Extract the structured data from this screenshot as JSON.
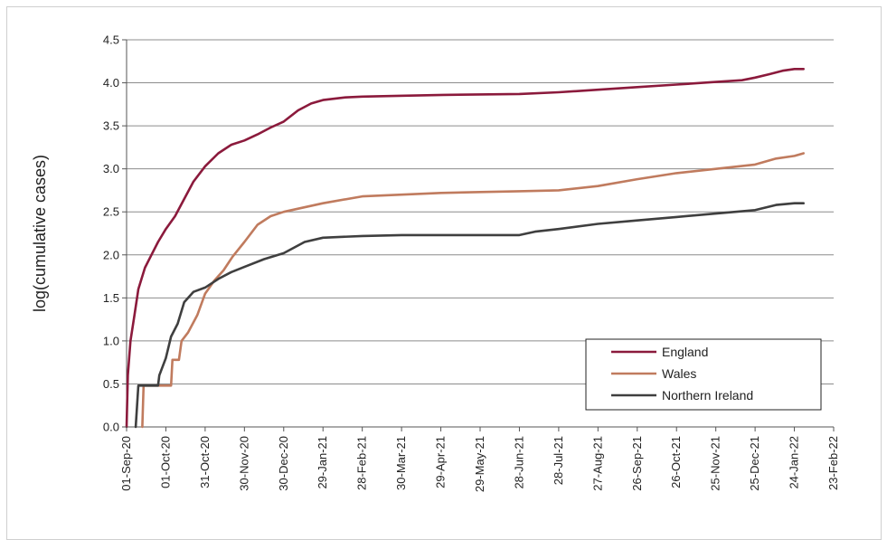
{
  "chart_data": {
    "type": "line",
    "title": "",
    "xlabel": "",
    "ylabel": "log(cumulative cases)",
    "ylim": [
      0,
      4.5
    ],
    "xlim": [
      "2020-09-01",
      "2022-02-23"
    ],
    "yticks": [
      "0.0",
      "0.5",
      "1.0",
      "1.5",
      "2.0",
      "2.5",
      "3.0",
      "3.5",
      "4.0",
      "4.5"
    ],
    "xtick_labels": [
      "01-Sep-20",
      "01-Oct-20",
      "31-Oct-20",
      "30-Nov-20",
      "30-Dec-20",
      "29-Jan-21",
      "28-Feb-21",
      "30-Mar-21",
      "29-Apr-21",
      "29-May-21",
      "28-Jun-21",
      "28-Jul-21",
      "27-Aug-21",
      "26-Sep-21",
      "26-Oct-21",
      "25-Nov-21",
      "25-Dec-21",
      "24-Jan-22",
      "23-Feb-22"
    ],
    "xtick_dates": [
      "2020-09-01",
      "2020-10-01",
      "2020-10-31",
      "2020-11-30",
      "2020-12-30",
      "2021-01-29",
      "2021-02-28",
      "2021-03-30",
      "2021-04-29",
      "2021-05-29",
      "2021-06-28",
      "2021-07-28",
      "2021-08-27",
      "2021-09-26",
      "2021-10-26",
      "2021-11-25",
      "2021-12-25",
      "2022-01-24",
      "2022-02-23"
    ],
    "grid": true,
    "legend_position": "lower-right",
    "series": [
      {
        "name": "England",
        "color": "#8b1a3c",
        "points": [
          [
            "2020-09-01",
            0.0
          ],
          [
            "2020-09-02",
            0.6
          ],
          [
            "2020-09-04",
            1.0
          ],
          [
            "2020-09-07",
            1.3
          ],
          [
            "2020-09-10",
            1.6
          ],
          [
            "2020-09-15",
            1.85
          ],
          [
            "2020-09-20",
            2.0
          ],
          [
            "2020-09-25",
            2.15
          ],
          [
            "2020-10-01",
            2.3
          ],
          [
            "2020-10-08",
            2.45
          ],
          [
            "2020-10-15",
            2.65
          ],
          [
            "2020-10-22",
            2.85
          ],
          [
            "2020-10-31",
            3.03
          ],
          [
            "2020-11-10",
            3.18
          ],
          [
            "2020-11-20",
            3.28
          ],
          [
            "2020-11-30",
            3.33
          ],
          [
            "2020-12-10",
            3.4
          ],
          [
            "2020-12-20",
            3.48
          ],
          [
            "2020-12-30",
            3.55
          ],
          [
            "2021-01-10",
            3.68
          ],
          [
            "2021-01-20",
            3.76
          ],
          [
            "2021-01-29",
            3.8
          ],
          [
            "2021-02-15",
            3.83
          ],
          [
            "2021-02-28",
            3.84
          ],
          [
            "2021-04-01",
            3.85
          ],
          [
            "2021-05-01",
            3.86
          ],
          [
            "2021-06-28",
            3.87
          ],
          [
            "2021-07-28",
            3.89
          ],
          [
            "2021-08-27",
            3.92
          ],
          [
            "2021-09-26",
            3.95
          ],
          [
            "2021-10-26",
            3.98
          ],
          [
            "2021-11-25",
            4.01
          ],
          [
            "2021-12-15",
            4.03
          ],
          [
            "2021-12-25",
            4.06
          ],
          [
            "2022-01-05",
            4.1
          ],
          [
            "2022-01-15",
            4.14
          ],
          [
            "2022-01-24",
            4.16
          ],
          [
            "2022-01-31",
            4.16
          ]
        ]
      },
      {
        "name": "Wales",
        "color": "#c07b5e",
        "points": [
          [
            "2020-09-13",
            0.0
          ],
          [
            "2020-09-14",
            0.48
          ],
          [
            "2020-10-05",
            0.48
          ],
          [
            "2020-10-06",
            0.78
          ],
          [
            "2020-10-11",
            0.78
          ],
          [
            "2020-10-13",
            1.0
          ],
          [
            "2020-10-18",
            1.1
          ],
          [
            "2020-10-25",
            1.3
          ],
          [
            "2020-10-31",
            1.55
          ],
          [
            "2020-11-07",
            1.7
          ],
          [
            "2020-11-14",
            1.82
          ],
          [
            "2020-11-21",
            1.98
          ],
          [
            "2020-11-30",
            2.15
          ],
          [
            "2020-12-10",
            2.35
          ],
          [
            "2020-12-20",
            2.45
          ],
          [
            "2020-12-30",
            2.5
          ],
          [
            "2021-01-29",
            2.6
          ],
          [
            "2021-02-28",
            2.68
          ],
          [
            "2021-03-30",
            2.7
          ],
          [
            "2021-04-29",
            2.72
          ],
          [
            "2021-05-29",
            2.73
          ],
          [
            "2021-06-28",
            2.74
          ],
          [
            "2021-07-28",
            2.75
          ],
          [
            "2021-08-27",
            2.8
          ],
          [
            "2021-09-26",
            2.88
          ],
          [
            "2021-10-26",
            2.95
          ],
          [
            "2021-11-25",
            3.0
          ],
          [
            "2021-12-25",
            3.05
          ],
          [
            "2022-01-10",
            3.12
          ],
          [
            "2022-01-24",
            3.15
          ],
          [
            "2022-01-31",
            3.18
          ]
        ]
      },
      {
        "name": "Northern Ireland",
        "color": "#3f3f3f",
        "points": [
          [
            "2020-09-08",
            0.0
          ],
          [
            "2020-09-10",
            0.48
          ],
          [
            "2020-09-25",
            0.48
          ],
          [
            "2020-09-26",
            0.6
          ],
          [
            "2020-10-01",
            0.8
          ],
          [
            "2020-10-05",
            1.05
          ],
          [
            "2020-10-10",
            1.2
          ],
          [
            "2020-10-15",
            1.45
          ],
          [
            "2020-10-22",
            1.57
          ],
          [
            "2020-10-31",
            1.62
          ],
          [
            "2020-11-10",
            1.72
          ],
          [
            "2020-11-20",
            1.8
          ],
          [
            "2020-11-30",
            1.86
          ],
          [
            "2020-12-15",
            1.95
          ],
          [
            "2020-12-30",
            2.02
          ],
          [
            "2021-01-15",
            2.15
          ],
          [
            "2021-01-29",
            2.2
          ],
          [
            "2021-02-28",
            2.22
          ],
          [
            "2021-03-30",
            2.23
          ],
          [
            "2021-06-28",
            2.23
          ],
          [
            "2021-07-10",
            2.27
          ],
          [
            "2021-07-28",
            2.3
          ],
          [
            "2021-08-27",
            2.36
          ],
          [
            "2021-09-26",
            2.4
          ],
          [
            "2021-10-26",
            2.44
          ],
          [
            "2021-11-25",
            2.48
          ],
          [
            "2021-12-25",
            2.52
          ],
          [
            "2022-01-10",
            2.58
          ],
          [
            "2022-01-24",
            2.6
          ],
          [
            "2022-01-31",
            2.6
          ]
        ]
      }
    ]
  }
}
